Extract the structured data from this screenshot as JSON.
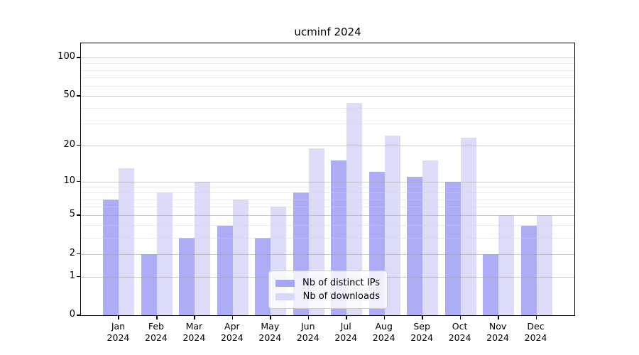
{
  "title": "ucminf 2024",
  "chart_data": {
    "type": "bar",
    "title": "ucminf 2024",
    "year": "2024",
    "categories": [
      "Jan",
      "Feb",
      "Mar",
      "Apr",
      "May",
      "Jun",
      "Jul",
      "Aug",
      "Sep",
      "Oct",
      "Nov",
      "Dec"
    ],
    "series": [
      {
        "name": "Nb of distinct IPs",
        "color": "#a6a6f6",
        "values": [
          7,
          2,
          3,
          4,
          3,
          8,
          15,
          12,
          11,
          10,
          2,
          4
        ]
      },
      {
        "name": "Nb of downloads",
        "color": "#d9d9f8",
        "values": [
          13,
          8,
          10,
          7,
          6,
          19,
          44,
          24,
          15,
          23,
          5,
          5
        ]
      }
    ],
    "y_axis": {
      "scale": "log1p",
      "ticks": [
        0,
        1,
        2,
        5,
        10,
        20,
        50,
        100
      ],
      "minor_ticks": [
        3,
        4,
        6,
        7,
        8,
        9,
        30,
        40,
        60,
        70,
        80,
        90
      ],
      "ylim": [
        0,
        130
      ]
    },
    "grid": "on",
    "legend_position": "bottom-center",
    "colors": {
      "grid_major": "#c8c8c8",
      "grid_minor": "#ebebeb",
      "spine": "#000000",
      "background": "#ffffff"
    }
  }
}
